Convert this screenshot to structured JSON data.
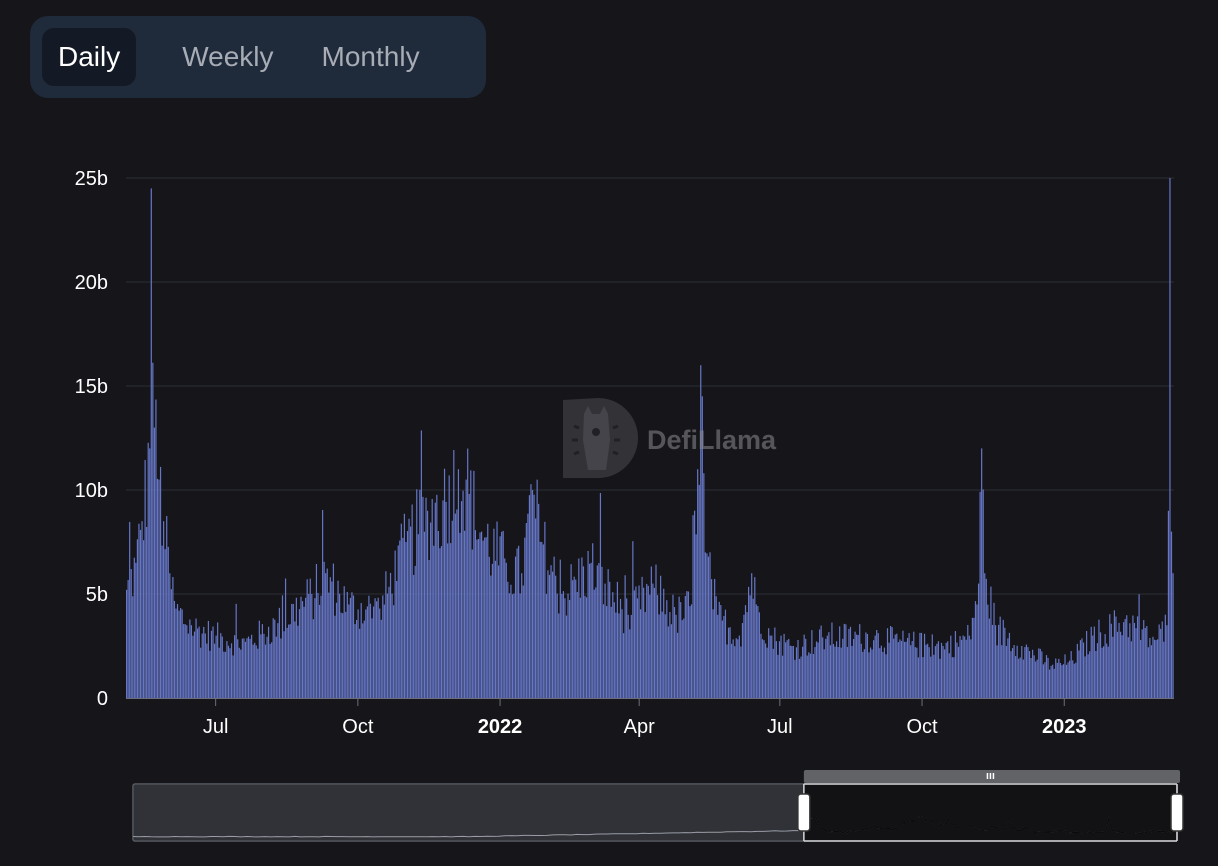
{
  "tabs": [
    {
      "label": "Daily",
      "active": true
    },
    {
      "label": "Weekly",
      "active": false
    },
    {
      "label": "Monthly",
      "active": false
    }
  ],
  "watermark": {
    "text": "DefiLlama",
    "icon": "llama-logo-icon"
  },
  "colors": {
    "background": "#16161a",
    "bar": "#6677c8",
    "bar_edge": "#8898e6",
    "grid": "#2c2e35",
    "axis_text": "#ffffff",
    "tab_bg": "#1f2a3b",
    "tab_active_bg": "#131925"
  },
  "chart_data": {
    "type": "bar",
    "x_range": [
      "2021-05-04",
      "2023-03-13"
    ],
    "ylim": [
      0,
      25000000000
    ],
    "y_ticks": [
      {
        "value": 0,
        "label": "0"
      },
      {
        "value": 5000000000,
        "label": "5b"
      },
      {
        "value": 10000000000,
        "label": "10b"
      },
      {
        "value": 15000000000,
        "label": "15b"
      },
      {
        "value": 20000000000,
        "label": "20b"
      },
      {
        "value": 25000000000,
        "label": "25b"
      }
    ],
    "x_ticks": [
      {
        "date": "2021-07-01",
        "label": "Jul",
        "bold": false
      },
      {
        "date": "2021-10-01",
        "label": "Oct",
        "bold": false
      },
      {
        "date": "2022-01-01",
        "label": "2022",
        "bold": true
      },
      {
        "date": "2022-04-01",
        "label": "Apr",
        "bold": false
      },
      {
        "date": "2022-07-01",
        "label": "Jul",
        "bold": false
      },
      {
        "date": "2022-10-01",
        "label": "Oct",
        "bold": false
      },
      {
        "date": "2023-01-01",
        "label": "2023",
        "bold": true
      }
    ],
    "grid": true,
    "legend": "none",
    "series_keyframes_billions": [
      [
        "2021-05-04",
        5.2
      ],
      [
        "2021-05-10",
        6.5
      ],
      [
        "2021-05-14",
        8.5
      ],
      [
        "2021-05-19",
        12.0
      ],
      [
        "2021-05-20",
        24.5
      ],
      [
        "2021-05-22",
        13.0
      ],
      [
        "2021-05-25",
        10.5
      ],
      [
        "2021-05-28",
        8.5
      ],
      [
        "2021-06-01",
        6.0
      ],
      [
        "2021-06-05",
        4.3
      ],
      [
        "2021-06-15",
        3.5
      ],
      [
        "2021-07-01",
        3.0
      ],
      [
        "2021-07-20",
        2.7
      ],
      [
        "2021-08-10",
        3.6
      ],
      [
        "2021-09-01",
        5.0
      ],
      [
        "2021-09-10",
        6.0
      ],
      [
        "2021-09-25",
        4.5
      ],
      [
        "2021-10-15",
        4.3
      ],
      [
        "2021-11-01",
        7.5
      ],
      [
        "2021-11-15",
        9.0
      ],
      [
        "2021-11-25",
        9.5
      ],
      [
        "2021-12-05",
        11.0
      ],
      [
        "2021-12-10",
        10.5
      ],
      [
        "2021-12-20",
        8.0
      ],
      [
        "2022-01-05",
        6.5
      ],
      [
        "2022-01-15",
        6.0
      ],
      [
        "2022-01-22",
        10.0
      ],
      [
        "2022-01-28",
        7.5
      ],
      [
        "2022-02-10",
        5.0
      ],
      [
        "2022-03-01",
        6.5
      ],
      [
        "2022-03-10",
        5.5
      ],
      [
        "2022-03-25",
        4.0
      ],
      [
        "2022-04-10",
        5.5
      ],
      [
        "2022-04-25",
        4.0
      ],
      [
        "2022-05-05",
        4.5
      ],
      [
        "2022-05-09",
        11.0
      ],
      [
        "2022-05-11",
        16.0
      ],
      [
        "2022-05-14",
        7.0
      ],
      [
        "2022-05-22",
        4.0
      ],
      [
        "2022-06-05",
        3.0
      ],
      [
        "2022-06-13",
        6.0
      ],
      [
        "2022-06-16",
        4.5
      ],
      [
        "2022-06-25",
        3.0
      ],
      [
        "2022-07-10",
        2.5
      ],
      [
        "2022-08-01",
        3.0
      ],
      [
        "2022-09-01",
        3.0
      ],
      [
        "2022-09-20",
        2.7
      ],
      [
        "2022-10-15",
        2.5
      ],
      [
        "2022-11-01",
        3.0
      ],
      [
        "2022-11-07",
        5.5
      ],
      [
        "2022-11-09",
        12.0
      ],
      [
        "2022-11-11",
        6.0
      ],
      [
        "2022-11-18",
        3.5
      ],
      [
        "2022-12-05",
        2.5
      ],
      [
        "2022-12-25",
        1.6
      ],
      [
        "2023-01-05",
        1.8
      ],
      [
        "2023-01-20",
        3.0
      ],
      [
        "2023-02-10",
        3.8
      ],
      [
        "2023-03-01",
        2.8
      ],
      [
        "2023-03-09",
        3.5
      ],
      [
        "2023-03-10",
        9.0
      ],
      [
        "2023-03-11",
        25.0
      ],
      [
        "2023-03-12",
        8.0
      ],
      [
        "2023-03-13",
        6.0
      ]
    ],
    "navigator": {
      "full_range": [
        "2018-01-01",
        "2023-03-13"
      ],
      "selected_range": [
        "2021-05-04",
        "2023-03-13"
      ]
    }
  }
}
